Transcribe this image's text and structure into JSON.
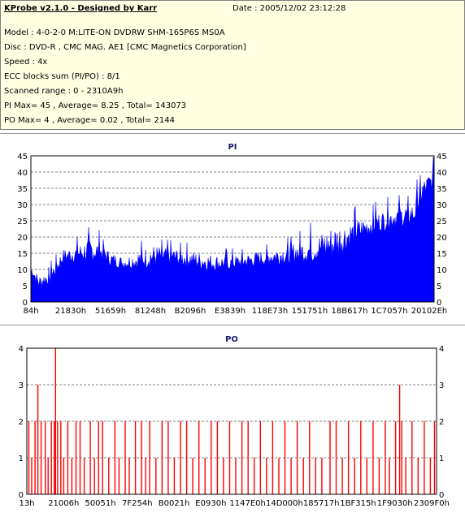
{
  "header": {
    "title": "KProbe v2.1.0 - Designed by Karr",
    "date": "Date : 2005/12/02 23:12:28",
    "lines": [
      "Model : 4-0-2-0 M:LITE-ON DVDRW SHM-165P6S MS0A",
      "Disc : DVD-R , CMC MAG. AE1 [CMC Magnetics Corporation]",
      "Speed : 4x",
      "ECC blocks sum (PI/PO) : 8/1",
      "Scanned range : 0 - 2310A9h",
      "PI Max= 45 , Average= 8.25 , Total= 143073",
      "PO Max= 4 , Average= 0.02 , Total= 2144"
    ]
  },
  "colors": {
    "pi_fill": "#0000ff",
    "po_line": "#ff0000",
    "grid": "#808080",
    "info_bg": "#ffffe1",
    "title": "#1a1a6e"
  },
  "chart_data": [
    {
      "type": "area",
      "title": "PI",
      "x_tick_labels": [
        "84h",
        "21830h",
        "51659h",
        "81248h",
        "B2096h",
        "E3839h",
        "118E73h",
        "151751h",
        "18B617h",
        "1C7057h",
        "20102Eh"
      ],
      "x_range": [
        "0h",
        "2310A9h"
      ],
      "ylim": [
        0,
        45
      ],
      "y_ticks": [
        0,
        5,
        10,
        15,
        20,
        25,
        30,
        35,
        40,
        45
      ],
      "grid": true,
      "envelope": {
        "x_fraction": [
          0,
          0.02,
          0.05,
          0.08,
          0.12,
          0.15,
          0.18,
          0.2,
          0.23,
          0.27,
          0.3,
          0.35,
          0.4,
          0.45,
          0.5,
          0.55,
          0.6,
          0.65,
          0.7,
          0.75,
          0.8,
          0.85,
          0.9,
          0.95,
          0.97,
          1
        ],
        "y_typical": [
          10,
          6,
          8,
          14,
          15,
          16,
          15,
          13,
          12,
          13,
          14,
          14,
          13,
          12,
          12,
          13,
          14,
          15,
          16,
          18,
          21,
          24,
          26,
          27,
          34,
          38
        ],
        "y_peak": [
          12,
          11,
          13,
          19,
          21,
          26,
          20,
          18,
          16,
          20,
          22,
          20,
          19,
          18,
          17,
          18,
          20,
          22,
          25,
          31,
          30,
          31,
          33,
          35,
          42,
          45
        ]
      }
    },
    {
      "type": "bar",
      "title": "PO",
      "x_tick_labels": [
        "13h",
        "21006h",
        "50051h",
        "7F254h",
        "B0021h",
        "E0930h",
        "1147E0h",
        "14D000h",
        "185717h",
        "1BF315h",
        "1F9030h",
        "2309F0h"
      ],
      "x_range": [
        "0h",
        "2310A9h"
      ],
      "ylim": [
        0,
        4
      ],
      "y_ticks": [
        0,
        1,
        2,
        3,
        4
      ],
      "grid": true,
      "spikes": [
        {
          "x_fraction": 0.005,
          "value": 2
        },
        {
          "x_fraction": 0.012,
          "value": 1
        },
        {
          "x_fraction": 0.02,
          "value": 2
        },
        {
          "x_fraction": 0.027,
          "value": 3
        },
        {
          "x_fraction": 0.035,
          "value": 2
        },
        {
          "x_fraction": 0.045,
          "value": 2
        },
        {
          "x_fraction": 0.052,
          "value": 1
        },
        {
          "x_fraction": 0.06,
          "value": 2
        },
        {
          "x_fraction": 0.067,
          "value": 2
        },
        {
          "x_fraction": 0.07,
          "value": 4
        },
        {
          "x_fraction": 0.075,
          "value": 2
        },
        {
          "x_fraction": 0.083,
          "value": 2
        },
        {
          "x_fraction": 0.09,
          "value": 1
        },
        {
          "x_fraction": 0.1,
          "value": 2
        },
        {
          "x_fraction": 0.11,
          "value": 1
        },
        {
          "x_fraction": 0.12,
          "value": 2
        },
        {
          "x_fraction": 0.13,
          "value": 2
        },
        {
          "x_fraction": 0.14,
          "value": 1
        },
        {
          "x_fraction": 0.155,
          "value": 2
        },
        {
          "x_fraction": 0.165,
          "value": 1
        },
        {
          "x_fraction": 0.175,
          "value": 2
        },
        {
          "x_fraction": 0.185,
          "value": 2
        },
        {
          "x_fraction": 0.2,
          "value": 1
        },
        {
          "x_fraction": 0.215,
          "value": 2
        },
        {
          "x_fraction": 0.225,
          "value": 1
        },
        {
          "x_fraction": 0.24,
          "value": 2
        },
        {
          "x_fraction": 0.25,
          "value": 1
        },
        {
          "x_fraction": 0.265,
          "value": 2
        },
        {
          "x_fraction": 0.28,
          "value": 2
        },
        {
          "x_fraction": 0.29,
          "value": 1
        },
        {
          "x_fraction": 0.3,
          "value": 2
        },
        {
          "x_fraction": 0.315,
          "value": 1
        },
        {
          "x_fraction": 0.33,
          "value": 2
        },
        {
          "x_fraction": 0.345,
          "value": 2
        },
        {
          "x_fraction": 0.36,
          "value": 1
        },
        {
          "x_fraction": 0.375,
          "value": 2
        },
        {
          "x_fraction": 0.39,
          "value": 2
        },
        {
          "x_fraction": 0.405,
          "value": 1
        },
        {
          "x_fraction": 0.42,
          "value": 2
        },
        {
          "x_fraction": 0.435,
          "value": 1
        },
        {
          "x_fraction": 0.45,
          "value": 2
        },
        {
          "x_fraction": 0.465,
          "value": 2
        },
        {
          "x_fraction": 0.48,
          "value": 1
        },
        {
          "x_fraction": 0.495,
          "value": 2
        },
        {
          "x_fraction": 0.51,
          "value": 1
        },
        {
          "x_fraction": 0.525,
          "value": 2
        },
        {
          "x_fraction": 0.54,
          "value": 2
        },
        {
          "x_fraction": 0.555,
          "value": 1
        },
        {
          "x_fraction": 0.57,
          "value": 2
        },
        {
          "x_fraction": 0.585,
          "value": 1
        },
        {
          "x_fraction": 0.6,
          "value": 2
        },
        {
          "x_fraction": 0.615,
          "value": 1
        },
        {
          "x_fraction": 0.63,
          "value": 2
        },
        {
          "x_fraction": 0.645,
          "value": 1
        },
        {
          "x_fraction": 0.66,
          "value": 2
        },
        {
          "x_fraction": 0.675,
          "value": 1
        },
        {
          "x_fraction": 0.69,
          "value": 2
        },
        {
          "x_fraction": 0.705,
          "value": 1
        },
        {
          "x_fraction": 0.72,
          "value": 1
        },
        {
          "x_fraction": 0.74,
          "value": 2
        },
        {
          "x_fraction": 0.755,
          "value": 2
        },
        {
          "x_fraction": 0.77,
          "value": 1
        },
        {
          "x_fraction": 0.785,
          "value": 2
        },
        {
          "x_fraction": 0.8,
          "value": 1
        },
        {
          "x_fraction": 0.815,
          "value": 2
        },
        {
          "x_fraction": 0.83,
          "value": 1
        },
        {
          "x_fraction": 0.845,
          "value": 2
        },
        {
          "x_fraction": 0.86,
          "value": 1
        },
        {
          "x_fraction": 0.875,
          "value": 2
        },
        {
          "x_fraction": 0.885,
          "value": 1
        },
        {
          "x_fraction": 0.9,
          "value": 2
        },
        {
          "x_fraction": 0.91,
          "value": 3
        },
        {
          "x_fraction": 0.915,
          "value": 2
        },
        {
          "x_fraction": 0.925,
          "value": 1
        },
        {
          "x_fraction": 0.94,
          "value": 2
        },
        {
          "x_fraction": 0.955,
          "value": 1
        },
        {
          "x_fraction": 0.97,
          "value": 2
        },
        {
          "x_fraction": 0.985,
          "value": 1
        },
        {
          "x_fraction": 0.995,
          "value": 2
        }
      ]
    }
  ]
}
